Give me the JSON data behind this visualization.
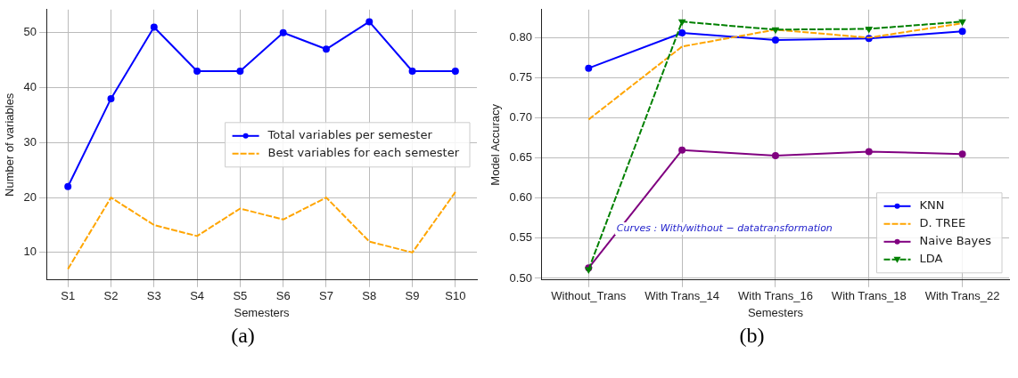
{
  "chart_data": [
    {
      "type": "line",
      "xlabel": "Semesters",
      "ylabel": "Number of variables",
      "categories": [
        "S1",
        "S2",
        "S3",
        "S4",
        "S5",
        "S6",
        "S7",
        "S8",
        "S9",
        "S10"
      ],
      "series": [
        {
          "name": "Total variables per semester",
          "color": "#0000ff",
          "values": [
            22,
            38,
            51,
            43,
            43,
            50,
            47,
            52,
            43,
            43
          ],
          "marker": "circle",
          "line_style": "solid"
        },
        {
          "name": "Best variables for each semester",
          "color": "#ffa500",
          "values": [
            7,
            20,
            15,
            13,
            18,
            16,
            20,
            12,
            10,
            21
          ],
          "marker": "none",
          "line_style": "dashed"
        }
      ],
      "ylim": [
        5,
        54.2
      ],
      "yticks": [
        10,
        20,
        30,
        40,
        50
      ],
      "grid": true,
      "legend": "right",
      "annotations": [
        "(a)"
      ]
    },
    {
      "type": "line",
      "xlabel": "Semesters",
      "ylabel": "Model Accuracy",
      "categories": [
        "Without_Trans",
        "With Trans_14",
        "With Trans_16",
        "With Trans_18",
        "With Trans_22"
      ],
      "series": [
        {
          "name": "KNN",
          "color": "#0000ff",
          "values": [
            0.762,
            0.806,
            0.797,
            0.799,
            0.808
          ],
          "marker": "circle",
          "line_style": "solid"
        },
        {
          "name": "D. TREE",
          "color": "#ffa500",
          "values": [
            0.698,
            0.789,
            0.81,
            0.8,
            0.818
          ],
          "marker": "none",
          "line_style": "dashed"
        },
        {
          "name": "Naive Bayes",
          "color": "#800080",
          "values": [
            0.513,
            0.66,
            0.653,
            0.658,
            0.655
          ],
          "marker": "circle",
          "line_style": "solid"
        },
        {
          "name": "LDA",
          "color": "#008000",
          "values": [
            0.511,
            0.82,
            0.81,
            0.811,
            0.82
          ],
          "marker": "triangle",
          "line_style": "dashed"
        }
      ],
      "ylim": [
        0.498,
        0.835
      ],
      "yticks": [
        {
          "value": 0.5,
          "label": "0.50"
        },
        {
          "value": 0.55,
          "label": "0.55"
        },
        {
          "value": 0.6,
          "label": "0.60"
        },
        {
          "value": 0.65,
          "label": "0.65"
        },
        {
          "value": 0.7,
          "label": "0.70"
        },
        {
          "value": 0.75,
          "label": "0.75"
        },
        {
          "value": 0.8,
          "label": "0.80"
        }
      ],
      "grid": true,
      "legend": "bottom right",
      "annotations": [
        "Curves : With/without − datatransformation",
        "(b)"
      ]
    }
  ]
}
